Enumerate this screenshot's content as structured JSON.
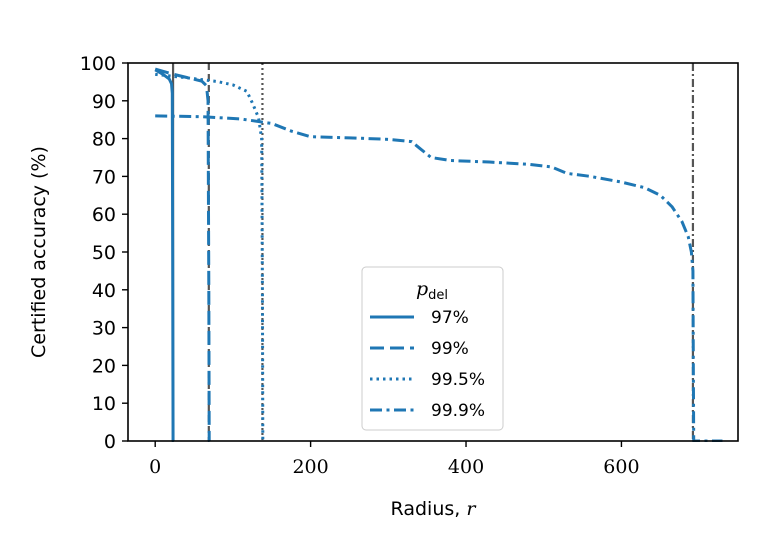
{
  "chart_data": {
    "type": "line",
    "title": "",
    "xlabel": "Radius,",
    "xlabel_var": "r",
    "ylabel": "Certified accuracy (%)",
    "xlim": [
      -35,
      750
    ],
    "ylim": [
      0,
      100
    ],
    "xticks": [
      0,
      200,
      400,
      600
    ],
    "yticks": [
      0,
      10,
      20,
      30,
      40,
      50,
      60,
      70,
      80,
      90,
      100
    ],
    "grid": false,
    "legend": {
      "title_var": "p",
      "title_sub": "del",
      "placement": "center-bottom"
    },
    "line_color": "#1f77b4",
    "vline_color": "#555555",
    "series": [
      {
        "name": "97%",
        "style": "solid",
        "points": [
          [
            0,
            98.2
          ],
          [
            10,
            97
          ],
          [
            18,
            95.8
          ],
          [
            21,
            94.5
          ],
          [
            22,
            92
          ],
          [
            22.5,
            50
          ],
          [
            23,
            0
          ],
          [
            24,
            0
          ]
        ]
      },
      {
        "name": "99%",
        "style": "dashed",
        "points": [
          [
            0,
            98.4
          ],
          [
            20,
            97.2
          ],
          [
            40,
            96.2
          ],
          [
            60,
            95.2
          ],
          [
            66,
            94
          ],
          [
            68,
            90
          ],
          [
            69,
            40
          ],
          [
            69.5,
            0
          ],
          [
            70,
            0
          ]
        ]
      },
      {
        "name": "99.5%",
        "style": "dotted",
        "points": [
          [
            0,
            97
          ],
          [
            40,
            96.1
          ],
          [
            80,
            95.1
          ],
          [
            100,
            94.2
          ],
          [
            118,
            92.5
          ],
          [
            126,
            89
          ],
          [
            133,
            85.5
          ],
          [
            137,
            80
          ],
          [
            138,
            40
          ],
          [
            138.5,
            0
          ],
          [
            140,
            0
          ]
        ]
      },
      {
        "name": "99.9%",
        "style": "dashdot",
        "points": [
          [
            0,
            86
          ],
          [
            60,
            85.8
          ],
          [
            110,
            85.2
          ],
          [
            150,
            84
          ],
          [
            175,
            82
          ],
          [
            200,
            80.5
          ],
          [
            250,
            80.2
          ],
          [
            300,
            79.8
          ],
          [
            330,
            79.2
          ],
          [
            340,
            77.5
          ],
          [
            355,
            75
          ],
          [
            380,
            74.2
          ],
          [
            430,
            73.8
          ],
          [
            480,
            73.2
          ],
          [
            510,
            72.5
          ],
          [
            530,
            70.8
          ],
          [
            560,
            70
          ],
          [
            600,
            68.5
          ],
          [
            630,
            67
          ],
          [
            650,
            65
          ],
          [
            665,
            62
          ],
          [
            678,
            58
          ],
          [
            686,
            54
          ],
          [
            690,
            50
          ],
          [
            692,
            45
          ],
          [
            692.5,
            20
          ],
          [
            693,
            0
          ],
          [
            730,
            0
          ]
        ]
      }
    ],
    "vlines": [
      {
        "x": 23,
        "style": "solid"
      },
      {
        "x": 69,
        "style": "dashed"
      },
      {
        "x": 138,
        "style": "dotted"
      },
      {
        "x": 692,
        "style": "dashdot"
      }
    ]
  }
}
